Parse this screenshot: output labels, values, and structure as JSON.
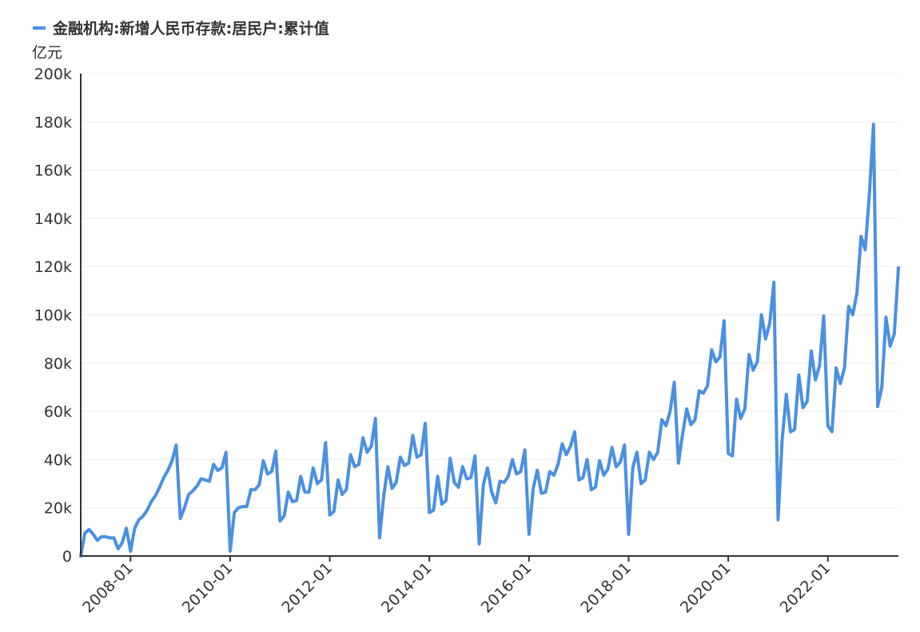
{
  "chart_data": {
    "type": "line",
    "title": "",
    "unit_label": "亿元",
    "xlabel": "",
    "ylabel": "",
    "legend": {
      "position": "top-left",
      "entries": [
        "金融机构:新增人民币存款:居民户:累计值"
      ]
    },
    "grid": true,
    "ylim": [
      0,
      200000
    ],
    "y_ticks": [
      0,
      20000,
      40000,
      60000,
      80000,
      100000,
      120000,
      140000,
      160000,
      180000,
      200000
    ],
    "y_tick_labels": [
      "0",
      "20k",
      "40k",
      "60k",
      "80k",
      "100k",
      "120k",
      "140k",
      "160k",
      "180k",
      "200k"
    ],
    "x_ticks": [
      "2008-01",
      "2010-01",
      "2012-01",
      "2014-01",
      "2016-01",
      "2018-01",
      "2020-01",
      "2022-01"
    ],
    "x_range": [
      "2007-01",
      "2023-06"
    ],
    "colors": {
      "series": "#4a90e2",
      "axis": "#333333",
      "grid": "#eeeeee"
    },
    "series": [
      {
        "name": "金融机构:新增人民币存款:居民户:累计值",
        "x": [
          "2007-01",
          "2007-02",
          "2007-03",
          "2007-04",
          "2007-05",
          "2007-06",
          "2007-07",
          "2007-08",
          "2007-09",
          "2007-10",
          "2007-11",
          "2007-12",
          "2008-01",
          "2008-02",
          "2008-03",
          "2008-04",
          "2008-05",
          "2008-06",
          "2008-07",
          "2008-08",
          "2008-09",
          "2008-10",
          "2008-11",
          "2008-12",
          "2009-01",
          "2009-02",
          "2009-03",
          "2009-04",
          "2009-05",
          "2009-06",
          "2009-07",
          "2009-08",
          "2009-09",
          "2009-10",
          "2009-11",
          "2009-12",
          "2010-01",
          "2010-02",
          "2010-03",
          "2010-04",
          "2010-05",
          "2010-06",
          "2010-07",
          "2010-08",
          "2010-09",
          "2010-10",
          "2010-11",
          "2010-12",
          "2011-01",
          "2011-02",
          "2011-03",
          "2011-04",
          "2011-05",
          "2011-06",
          "2011-07",
          "2011-08",
          "2011-09",
          "2011-10",
          "2011-11",
          "2011-12",
          "2012-01",
          "2012-02",
          "2012-03",
          "2012-04",
          "2012-05",
          "2012-06",
          "2012-07",
          "2012-08",
          "2012-09",
          "2012-10",
          "2012-11",
          "2012-12",
          "2013-01",
          "2013-02",
          "2013-03",
          "2013-04",
          "2013-05",
          "2013-06",
          "2013-07",
          "2013-08",
          "2013-09",
          "2013-10",
          "2013-11",
          "2013-12",
          "2014-01",
          "2014-02",
          "2014-03",
          "2014-04",
          "2014-05",
          "2014-06",
          "2014-07",
          "2014-08",
          "2014-09",
          "2014-10",
          "2014-11",
          "2014-12",
          "2015-01",
          "2015-02",
          "2015-03",
          "2015-04",
          "2015-05",
          "2015-06",
          "2015-07",
          "2015-08",
          "2015-09",
          "2015-10",
          "2015-11",
          "2015-12",
          "2016-01",
          "2016-02",
          "2016-03",
          "2016-04",
          "2016-05",
          "2016-06",
          "2016-07",
          "2016-08",
          "2016-09",
          "2016-10",
          "2016-11",
          "2016-12",
          "2017-01",
          "2017-02",
          "2017-03",
          "2017-04",
          "2017-05",
          "2017-06",
          "2017-07",
          "2017-08",
          "2017-09",
          "2017-10",
          "2017-11",
          "2017-12",
          "2018-01",
          "2018-02",
          "2018-03",
          "2018-04",
          "2018-05",
          "2018-06",
          "2018-07",
          "2018-08",
          "2018-09",
          "2018-10",
          "2018-11",
          "2018-12",
          "2019-01",
          "2019-02",
          "2019-03",
          "2019-04",
          "2019-05",
          "2019-06",
          "2019-07",
          "2019-08",
          "2019-09",
          "2019-10",
          "2019-11",
          "2019-12",
          "2020-01",
          "2020-02",
          "2020-03",
          "2020-04",
          "2020-05",
          "2020-06",
          "2020-07",
          "2020-08",
          "2020-09",
          "2020-10",
          "2020-11",
          "2020-12",
          "2021-01",
          "2021-02",
          "2021-03",
          "2021-04",
          "2021-05",
          "2021-06",
          "2021-07",
          "2021-08",
          "2021-09",
          "2021-10",
          "2021-11",
          "2021-12",
          "2022-01",
          "2022-02",
          "2022-03",
          "2022-04",
          "2022-05",
          "2022-06",
          "2022-07",
          "2022-08",
          "2022-09",
          "2022-10",
          "2022-11",
          "2022-12",
          "2023-01",
          "2023-02",
          "2023-03",
          "2023-04",
          "2023-05",
          "2023-06"
        ],
        "values": [
          0,
          9500,
          11000,
          9000,
          6500,
          8000,
          8000,
          7500,
          7500,
          3000,
          5500,
          11500,
          2000,
          11500,
          15000,
          16500,
          19000,
          22500,
          25000,
          28500,
          32500,
          35500,
          39500,
          46000,
          15500,
          20000,
          25500,
          27000,
          29000,
          32000,
          31500,
          31000,
          38000,
          35500,
          36500,
          43000,
          2000,
          18000,
          20000,
          20500,
          20500,
          27500,
          27500,
          29500,
          39500,
          34000,
          35000,
          43500,
          14500,
          16500,
          26500,
          22500,
          23000,
          33000,
          26500,
          26500,
          36500,
          30000,
          31500,
          47000,
          17000,
          18500,
          31500,
          25500,
          27500,
          42000,
          37000,
          38000,
          49000,
          43000,
          45500,
          57000,
          7500,
          25000,
          37000,
          28000,
          30500,
          41000,
          37500,
          38500,
          50000,
          41000,
          42000,
          55000,
          18000,
          19000,
          33000,
          21500,
          23000,
          40500,
          30500,
          28500,
          37000,
          32000,
          32500,
          41500,
          5000,
          29500,
          36500,
          26500,
          22000,
          31000,
          30500,
          33000,
          40000,
          34000,
          35000,
          44000,
          9000,
          28000,
          35500,
          26000,
          26500,
          35000,
          33500,
          38000,
          46500,
          42000,
          45500,
          51500,
          31500,
          32500,
          40000,
          27500,
          28500,
          39500,
          33500,
          36000,
          45000,
          37000,
          39000,
          46000,
          9000,
          36500,
          43000,
          30000,
          31500,
          43000,
          40000,
          43000,
          56500,
          54000,
          60000,
          72000,
          38500,
          50500,
          61000,
          54500,
          56500,
          68500,
          67500,
          70500,
          85500,
          80500,
          82500,
          97500,
          42500,
          41500,
          65000,
          57000,
          61000,
          83500,
          77000,
          80500,
          100000,
          90000,
          96500,
          113500,
          15000,
          48500,
          67000,
          51500,
          52500,
          75000,
          61500,
          64000,
          85000,
          73000,
          79000,
          99500,
          54000,
          51500,
          78000,
          71500,
          78000,
          103500,
          100000,
          109000,
          132500,
          127000,
          150000,
          179000,
          62000,
          70000,
          99000,
          87000,
          92000,
          119500
        ]
      }
    ]
  }
}
